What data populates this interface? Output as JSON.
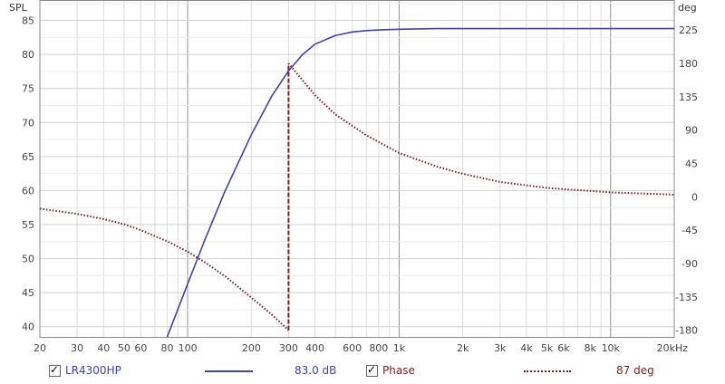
{
  "chart_data": {
    "type": "line",
    "y_left_label": "SPL",
    "y_right_label": "deg",
    "x_scale": "log",
    "xlim": [
      20,
      20000
    ],
    "ylim_left": [
      38.5,
      88
    ],
    "ylim_right": [
      -189,
      265.5
    ],
    "x_tick_labels": [
      {
        "v": 20,
        "t": "20"
      },
      {
        "v": 30,
        "t": "30"
      },
      {
        "v": 40,
        "t": "40"
      },
      {
        "v": 50,
        "t": "50"
      },
      {
        "v": 60,
        "t": "60"
      },
      {
        "v": 80,
        "t": "80"
      },
      {
        "v": 100,
        "t": "100"
      },
      {
        "v": 200,
        "t": "200"
      },
      {
        "v": 300,
        "t": "300"
      },
      {
        "v": 400,
        "t": "400"
      },
      {
        "v": 600,
        "t": "600"
      },
      {
        "v": 800,
        "t": "800"
      },
      {
        "v": 1000,
        "t": "1k"
      },
      {
        "v": 2000,
        "t": "2k"
      },
      {
        "v": 3000,
        "t": "3k"
      },
      {
        "v": 4000,
        "t": "4k"
      },
      {
        "v": 5000,
        "t": "5k"
      },
      {
        "v": 6000,
        "t": "6k"
      },
      {
        "v": 8000,
        "t": "8k"
      },
      {
        "v": 10000,
        "t": "10k"
      },
      {
        "v": 20000,
        "t": "20kHz"
      }
    ],
    "y_left_ticks": [
      40,
      45,
      50,
      55,
      60,
      65,
      70,
      75,
      80,
      85
    ],
    "y_right_ticks": [
      -180,
      -135,
      -90,
      -45,
      0,
      45,
      90,
      135,
      180,
      225
    ],
    "grid": true,
    "series": [
      {
        "name": "LR4300HP",
        "axis": "left",
        "color": "#4040b0",
        "style": "solid",
        "x": [
          80,
          90,
          100,
          120,
          150,
          200,
          250,
          300,
          350,
          400,
          500,
          600,
          700,
          800,
          1000,
          1500,
          2000,
          5000,
          10000,
          20000
        ],
        "values": [
          38.5,
          42.6,
          46.3,
          52.6,
          59.9,
          68.2,
          73.9,
          77.6,
          80.0,
          81.5,
          82.8,
          83.3,
          83.5,
          83.6,
          83.7,
          83.8,
          83.8,
          83.8,
          83.8,
          83.8
        ]
      },
      {
        "name": "Phase",
        "axis": "right",
        "color": "#7a1e1e",
        "style": "dotted",
        "x": [
          20,
          30,
          40,
          50,
          60,
          80,
          100,
          120,
          150,
          200,
          250,
          300,
          300,
          400,
          500,
          700,
          1000,
          1500,
          2000,
          3000,
          5000,
          10000,
          20000
        ],
        "values": [
          -16,
          -23,
          -30,
          -37,
          -45,
          -60,
          -74,
          -88,
          -107,
          -136,
          -159,
          -180,
          180,
          137,
          111,
          83,
          59,
          41,
          31,
          20,
          12,
          6,
          3
        ]
      }
    ],
    "legend": {
      "position": "bottom",
      "entries": [
        {
          "label": "LR4300HP",
          "readout": "83.0 dB",
          "checked": true
        },
        {
          "label": "Phase",
          "readout": "87 deg",
          "checked": true
        }
      ]
    }
  }
}
